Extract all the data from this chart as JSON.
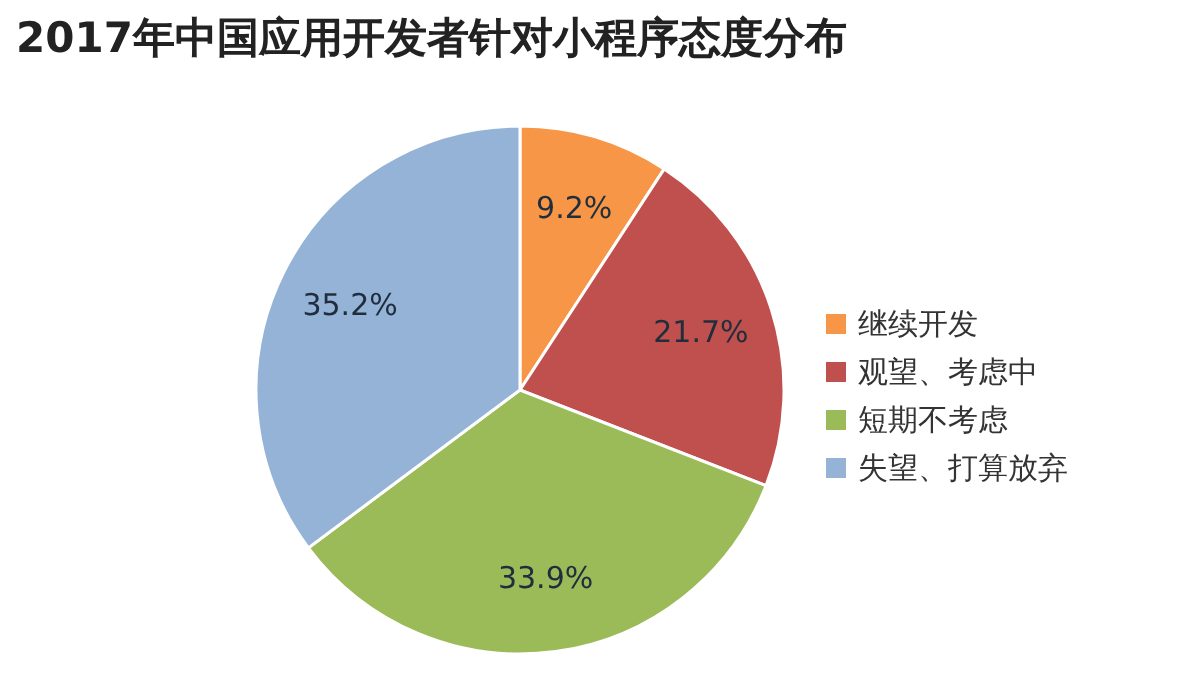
{
  "chart_data": {
    "type": "pie",
    "title": "2017年中国应用开发者针对小程序态度分布",
    "categories": [
      "继续开发",
      "观望、考虑中",
      "短期不考虑",
      "失望、打算放弃"
    ],
    "values": [
      9.2,
      21.7,
      33.9,
      35.2
    ],
    "value_labels": [
      "9.2%",
      "21.7%",
      "33.9%",
      "35.2%"
    ],
    "colors": [
      "#f79646",
      "#c0504d",
      "#9bbb59",
      "#95b3d7"
    ],
    "legend": "right"
  }
}
